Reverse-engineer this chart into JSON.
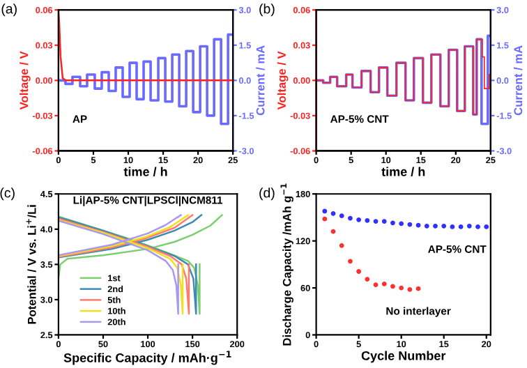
{
  "chart_data": [
    {
      "type": "line",
      "title": "(a)",
      "xlabel": "time / h",
      "ylabel": "Voltage / V",
      "y2label": "Current / mA",
      "annotations": [
        "AP"
      ],
      "xlim": [
        0,
        25
      ],
      "xticks": [
        0,
        5,
        10,
        15,
        20,
        25
      ],
      "ylim": [
        -0.06,
        0.06
      ],
      "yticks": [
        -0.06,
        -0.03,
        {
          "value": 0,
          "label": "0.00"
        },
        0.03,
        0.06
      ],
      "y2lim": [
        -3.0,
        3.0
      ],
      "y2ticks": [
        {
          "value": -3,
          "label": "-3.0"
        },
        {
          "value": -1.5,
          "label": "-1.5"
        },
        {
          "value": 0,
          "label": "0.0"
        },
        {
          "value": 1.5,
          "label": "1.5"
        },
        {
          "value": 3,
          "label": "3.0"
        }
      ],
      "grid": false,
      "legend": false,
      "series": [
        {
          "type": "line",
          "color": "#ff2020",
          "x": [
            0,
            0.1,
            0.3,
            0.6,
            1,
            25
          ],
          "values": [
            0.06,
            0.05,
            0.02,
            0.002,
            0,
            0
          ]
        },
        {
          "type": "step",
          "axis": "y2",
          "color": "#6a6aff",
          "x": [
            0,
            1,
            2,
            3.1,
            4.1,
            5.2,
            6.2,
            7.2,
            8.2,
            9.2,
            10.2,
            11.2,
            12.2,
            13.2,
            14.3,
            15.3,
            16.3,
            17.3,
            18.3,
            19.3,
            20.3,
            21.3,
            22.3,
            23.3,
            24.3,
            25
          ],
          "values": [
            0,
            -0.15,
            0.15,
            -0.25,
            0.25,
            -0.35,
            0.35,
            -0.45,
            0.55,
            -0.7,
            0.75,
            -0.8,
            0.8,
            -0.85,
            0.95,
            -0.9,
            1.1,
            -1.1,
            1.25,
            -1.35,
            1.45,
            -1.5,
            1.75,
            -1.85,
            1.95,
            1.95
          ]
        }
      ]
    },
    {
      "type": "line",
      "title": "(b)",
      "xlabel": "time / h",
      "ylabel": "Voltage / V",
      "y2label": "Current / mA",
      "annotations": [
        "AP-5% CNT"
      ],
      "xlim": [
        0,
        25
      ],
      "xticks": [
        0,
        5,
        10,
        15,
        20,
        25
      ],
      "ylim": [
        -0.06,
        0.06
      ],
      "yticks": [
        -0.06,
        -0.03,
        {
          "value": 0,
          "label": "0.00"
        },
        0.03,
        0.06
      ],
      "y2lim": [
        -3.0,
        3.0
      ],
      "y2ticks": [
        {
          "value": -3,
          "label": "-3.0"
        },
        {
          "value": -1.5,
          "label": "-1.5"
        },
        {
          "value": 0,
          "label": "0.0"
        },
        {
          "value": 1.5,
          "label": "1.5"
        },
        {
          "value": 3,
          "label": "3.0"
        }
      ],
      "grid": false,
      "legend": false,
      "series": [
        {
          "type": "step",
          "axis": "y2",
          "color": "#6a6aff",
          "x": [
            0,
            1,
            2,
            3,
            4.3,
            5.2,
            6.5,
            7.8,
            9,
            10.2,
            11.5,
            12.8,
            14,
            15.3,
            16.5,
            17.8,
            19,
            20.2,
            21.3,
            22.5,
            23,
            23.7,
            24.6,
            25
          ],
          "values": [
            0,
            -0.1,
            0.15,
            -0.25,
            0.25,
            -0.3,
            0.4,
            -0.5,
            0.55,
            -0.65,
            0.75,
            -0.85,
            0.95,
            -0.95,
            1.1,
            -1.1,
            1.3,
            -1.3,
            1.45,
            -1.45,
            1.75,
            -1.85,
            1.9,
            1.9
          ]
        },
        {
          "type": "step",
          "color": "#ff2020",
          "x": [
            0,
            1,
            2,
            3,
            4.3,
            5.2,
            6.5,
            7.8,
            9,
            10.2,
            11.5,
            12.8,
            14,
            15.3,
            16.5,
            17.8,
            19,
            20.2,
            21.3,
            22.5,
            23,
            23.8,
            24.1,
            24.8,
            25
          ],
          "values": [
            0,
            -0.002,
            0.003,
            -0.005,
            0.005,
            -0.006,
            0.008,
            -0.01,
            0.011,
            -0.013,
            0.015,
            -0.017,
            0.019,
            -0.019,
            0.022,
            -0.022,
            0.026,
            -0.026,
            0.029,
            -0.029,
            0.035,
            0.02,
            -0.007,
            0.005,
            0.005
          ]
        }
      ]
    },
    {
      "type": "line",
      "title": "(c)",
      "xlabel": "Specific Capacity / mAh·g$^{−1}$",
      "ylabel": "Potential / V vs. Li$^{+}$/Li",
      "annotations": [
        "Li|AP-5% CNT|LPSCl|NCM811"
      ],
      "xlim": [
        0,
        200
      ],
      "xticks": [
        0,
        50,
        100,
        150,
        200
      ],
      "ylim": [
        2.5,
        4.5
      ],
      "yticks": [
        2.5,
        {
          "value": 3,
          "label": "3.0"
        },
        3.5,
        {
          "value": 4,
          "label": "4.0"
        },
        4.5
      ],
      "grid": false,
      "legend": "bottom left",
      "series": [
        {
          "name": "1st",
          "color": "#7ccf6f",
          "x": [
            0,
            2,
            10,
            50,
            100,
            130,
            150,
            170,
            183,
            null,
            0,
            25,
            50,
            75,
            100,
            125,
            145,
            152,
            156,
            158,
            158
          ],
          "values": [
            3.3,
            3.5,
            3.58,
            3.63,
            3.72,
            3.82,
            3.92,
            4.05,
            4.2,
            null,
            4.18,
            4.08,
            3.98,
            3.88,
            3.77,
            3.65,
            3.55,
            3.45,
            3.2,
            2.8,
            3.5
          ]
        },
        {
          "name": "2nd",
          "color": "#3b8bb5",
          "x": [
            0,
            20,
            60,
            100,
            130,
            150,
            160,
            null,
            0,
            50,
            100,
            130,
            145,
            151,
            154,
            154
          ],
          "values": [
            3.6,
            3.64,
            3.72,
            3.85,
            3.98,
            4.1,
            4.2,
            null,
            4.17,
            3.98,
            3.76,
            3.62,
            3.5,
            3.3,
            2.8,
            3.5
          ]
        },
        {
          "name": "5th",
          "color": "#ff7b6b",
          "x": [
            0,
            20,
            60,
            100,
            130,
            150,
            null,
            0,
            50,
            100,
            125,
            138,
            143,
            146,
            146
          ],
          "values": [
            3.61,
            3.65,
            3.74,
            3.88,
            4.02,
            4.2,
            null,
            4.15,
            3.96,
            3.75,
            3.62,
            3.5,
            3.3,
            2.8,
            3.5
          ]
        },
        {
          "name": "10th",
          "color": "#f0e020",
          "x": [
            0,
            60,
            100,
            125,
            145,
            null,
            0,
            50,
            100,
            125,
            133,
            137,
            139,
            139
          ],
          "values": [
            3.62,
            3.76,
            3.9,
            4.03,
            4.2,
            null,
            4.13,
            3.95,
            3.73,
            3.58,
            3.45,
            3.2,
            2.8,
            3.5
          ]
        },
        {
          "name": "20th",
          "color": "#a898f0",
          "x": [
            0,
            60,
            100,
            120,
            137,
            null,
            0,
            50,
            100,
            120,
            128,
            132,
            134,
            134
          ],
          "values": [
            3.63,
            3.78,
            3.94,
            4.06,
            4.2,
            null,
            4.12,
            3.93,
            3.7,
            3.55,
            3.42,
            3.2,
            2.8,
            3.5
          ]
        }
      ]
    },
    {
      "type": "scatter",
      "title": "(d)",
      "xlabel": "Cycle Number",
      "ylabel": "Discharge Capacity /mAh g$^{−1}$",
      "marker": "circle",
      "xlim": [
        0,
        20.5
      ],
      "xticks": [
        0,
        5,
        10,
        15,
        20
      ],
      "ylim": [
        0,
        180
      ],
      "yticks": [
        0,
        60,
        120,
        180
      ],
      "grid": false,
      "legend": false,
      "series": [
        {
          "name": "AP-5% CNT",
          "color": "#3030ff",
          "x": [
            1,
            2,
            3,
            4,
            5,
            6,
            7,
            8,
            9,
            10,
            11,
            12,
            13,
            14,
            15,
            16,
            17,
            18,
            19,
            20
          ],
          "values": [
            158,
            155,
            152,
            149,
            147,
            146,
            145,
            145,
            143,
            142,
            141,
            140,
            139,
            139,
            139,
            138,
            138,
            139,
            138,
            138
          ]
        },
        {
          "name": "No interlayer",
          "color": "#ff3030",
          "x": [
            1,
            2,
            3,
            4,
            5,
            6,
            7,
            8,
            9,
            10,
            11,
            12
          ],
          "values": [
            148,
            132,
            114,
            94,
            81,
            71,
            64,
            65,
            62,
            60,
            58,
            59
          ]
        }
      ]
    }
  ]
}
